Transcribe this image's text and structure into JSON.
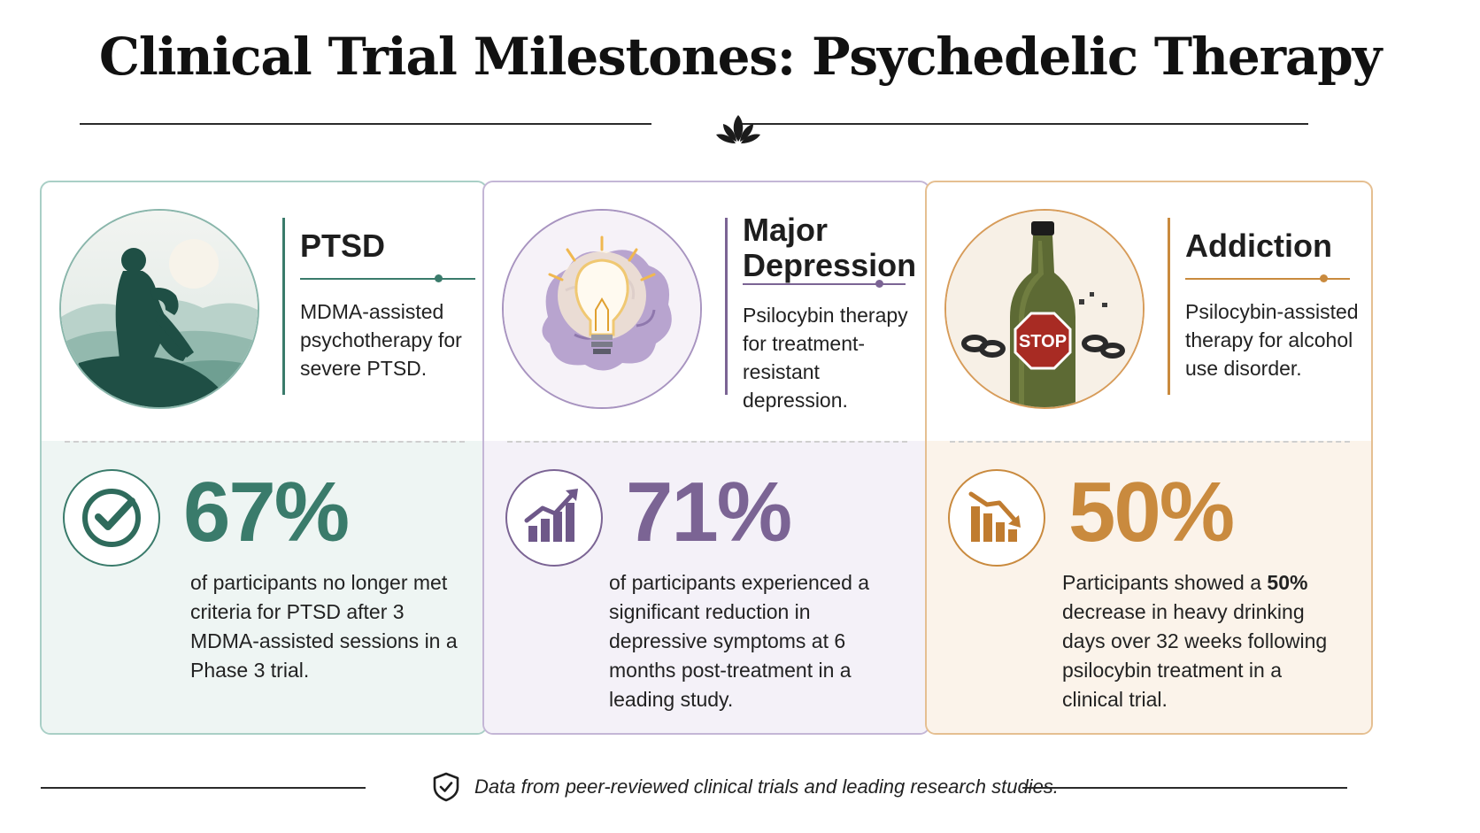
{
  "title": "Clinical Trial Milestones: Psychedelic Therapy",
  "colors": {
    "ptsd": "#3a7b6b",
    "depression": "#7b6494",
    "addiction": "#c98a3e"
  },
  "cards": [
    {
      "condition": "PTSD",
      "illustration": "person-sitting-on-rock-silhouette",
      "description": "MDMA-assisted psychotherapy for severe PTSD.",
      "icon": "checkmark-icon",
      "stat": "67%",
      "stat_description": "of participants no longer met criteria for PTSD after 3 MDMA-assisted sessions in a Phase 3 trial."
    },
    {
      "condition": "Major Depression",
      "illustration": "brain-with-lightbulb",
      "description": "Psilocybin therapy for treatment-resistant depression.",
      "icon": "rising-bar-chart-icon",
      "stat": "71%",
      "stat_description": "of participants experienced a significant reduction in depressive symptoms at 6 months post-treatment in a leading study."
    },
    {
      "condition": "Addiction",
      "illustration": "bottle-with-stop-sign-and-broken-chains",
      "illustration_text": "STOP",
      "description": "Psilocybin-assisted therapy for alcohol use disorder.",
      "icon": "declining-bar-chart-icon",
      "stat": "50%",
      "stat_description_pre": "Participants showed a ",
      "stat_description_bold": "50%",
      "stat_description_post": " decrease in heavy drinking days over 32 weeks following psilocybin treatment in a clinical trial."
    }
  ],
  "footer": {
    "icon": "shield-check-icon",
    "note": "Data from peer-reviewed clinical trials and leading research studies."
  }
}
